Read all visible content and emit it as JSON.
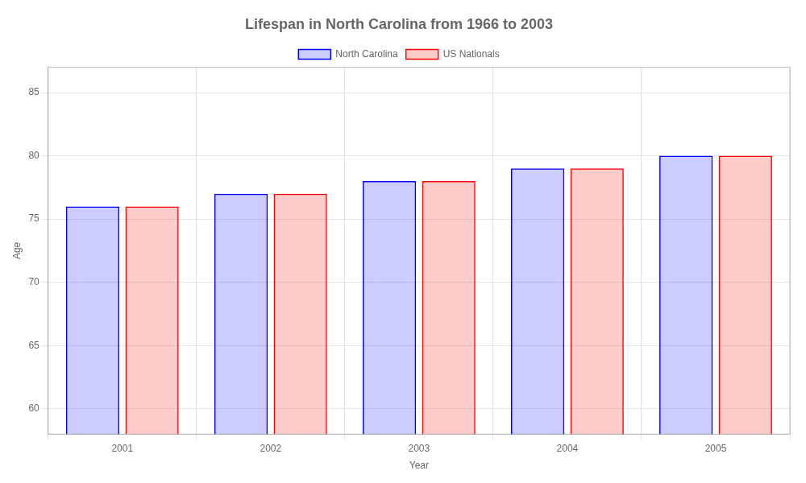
{
  "chart_data": {
    "type": "bar",
    "title": "Lifespan in North Carolina from 1966 to 2003",
    "x_label": "Year",
    "y_label": "Age",
    "categories": [
      "2001",
      "2002",
      "2003",
      "2004",
      "2005"
    ],
    "series": [
      {
        "name": "North Carolina",
        "color": "#0000ff",
        "values": [
          76,
          77,
          78,
          79,
          80
        ]
      },
      {
        "name": "US Nationals",
        "color": "#ff0000",
        "values": [
          76,
          77,
          78,
          79,
          80
        ]
      }
    ],
    "ylim": [
      58,
      87
    ],
    "yticks": [
      60,
      65,
      70,
      75,
      80,
      85
    ],
    "grid": true,
    "legend": "top"
  }
}
